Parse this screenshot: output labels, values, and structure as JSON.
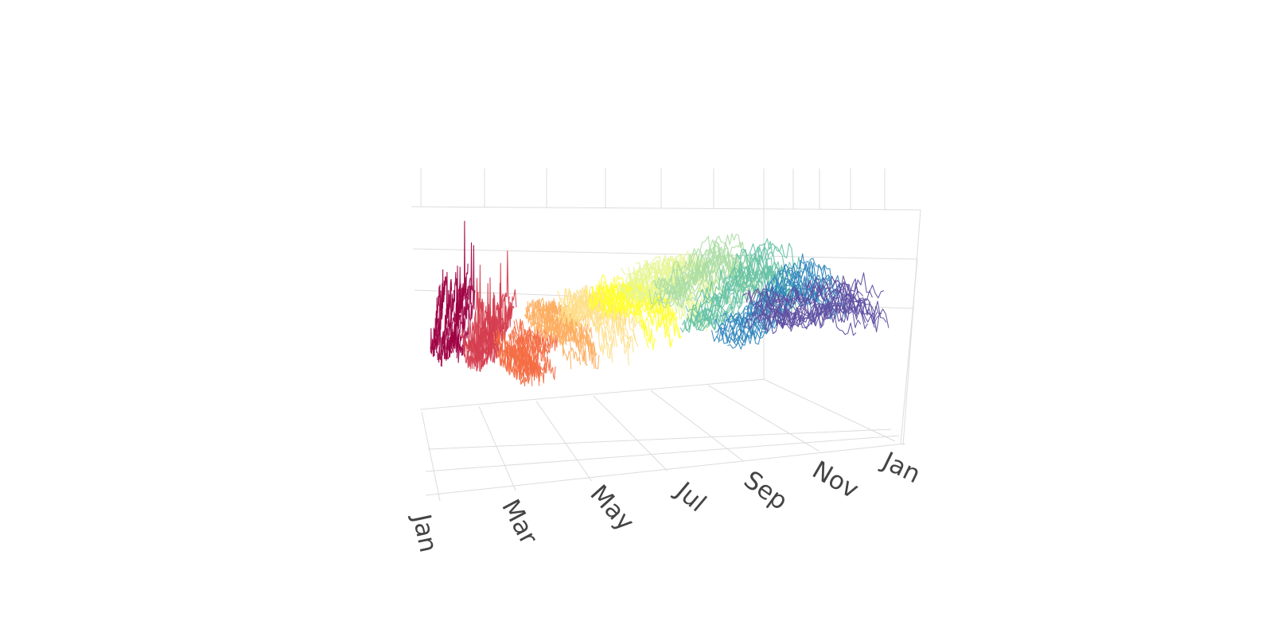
{
  "chart_data": {
    "type": "line",
    "title": "",
    "x_axis": {
      "label": "",
      "ticks": [
        "Jan",
        "Mar",
        "May",
        "Jul",
        "Sep",
        "Nov",
        "Jan"
      ]
    },
    "y_axis": {
      "label": ""
    },
    "z_axis": {
      "label": ""
    },
    "grid": true,
    "legend": "none",
    "colorscale": [
      "#9e0142",
      "#d53e4f",
      "#f46d43",
      "#fdae61",
      "#fee08b",
      "#ffff33",
      "#e6f598",
      "#abdda4",
      "#66c2a5",
      "#3288bd",
      "#5e4fa2"
    ],
    "series_groups": [
      {
        "month": "Jan",
        "color": "#9e0142",
        "values": [
          0.82,
          0.78,
          0.74,
          0.7,
          0.66,
          0.6,
          0.55,
          0.5,
          0.45,
          0.4,
          0.36,
          0.32
        ]
      },
      {
        "month": "Feb",
        "color": "#d53e4f",
        "values": [
          0.7,
          0.68,
          0.65,
          0.6,
          0.55,
          0.5,
          0.46,
          0.42,
          0.38,
          0.35,
          0.32,
          0.3
        ]
      },
      {
        "month": "Mar",
        "color": "#f46d43",
        "values": [
          0.48,
          0.47,
          0.46,
          0.45,
          0.44,
          0.42,
          0.4,
          0.38,
          0.36,
          0.35,
          0.34,
          0.33
        ]
      },
      {
        "month": "Apr",
        "color": "#fdae61",
        "values": [
          0.5,
          0.52,
          0.54,
          0.55,
          0.54,
          0.53,
          0.52,
          0.5,
          0.48,
          0.46,
          0.45,
          0.44
        ]
      },
      {
        "month": "May",
        "color": "#fee08b",
        "values": [
          0.52,
          0.55,
          0.58,
          0.6,
          0.6,
          0.59,
          0.57,
          0.55,
          0.53,
          0.51,
          0.5,
          0.49
        ]
      },
      {
        "month": "Jun",
        "color": "#ffff33",
        "values": [
          0.55,
          0.58,
          0.61,
          0.63,
          0.63,
          0.62,
          0.6,
          0.58,
          0.56,
          0.54,
          0.53,
          0.52
        ]
      },
      {
        "month": "Jul",
        "color": "#e6f598",
        "values": [
          0.6,
          0.63,
          0.66,
          0.68,
          0.68,
          0.67,
          0.65,
          0.63,
          0.61,
          0.59,
          0.58,
          0.57
        ]
      },
      {
        "month": "Aug",
        "color": "#abdda4",
        "values": [
          0.66,
          0.7,
          0.74,
          0.76,
          0.75,
          0.72,
          0.68,
          0.64,
          0.6,
          0.56,
          0.53,
          0.51
        ]
      },
      {
        "month": "Sep",
        "color": "#66c2a5",
        "values": [
          0.62,
          0.66,
          0.7,
          0.72,
          0.7,
          0.66,
          0.6,
          0.54,
          0.48,
          0.43,
          0.39,
          0.36
        ]
      },
      {
        "month": "Oct",
        "color": "#3288bd",
        "values": [
          0.58,
          0.6,
          0.62,
          0.62,
          0.6,
          0.56,
          0.5,
          0.44,
          0.38,
          0.33,
          0.3,
          0.28
        ]
      },
      {
        "month": "Nov",
        "color": "#5e4fa2",
        "values": [
          0.5,
          0.52,
          0.53,
          0.52,
          0.5,
          0.47,
          0.44,
          0.42,
          0.4,
          0.39,
          0.38,
          0.38
        ]
      }
    ]
  }
}
